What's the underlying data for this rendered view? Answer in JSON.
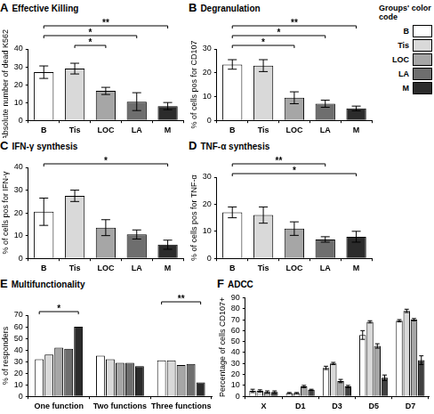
{
  "chart_data": [
    {
      "panel": "A",
      "type": "bar",
      "title": "Effective Killing",
      "ylabel": "Absolute number of dead K562",
      "categories": [
        "B",
        "Tis",
        "LOC",
        "LA",
        "M"
      ],
      "values": [
        27,
        29,
        16.5,
        10.5,
        8
      ],
      "errors": [
        3.5,
        3,
        2,
        5,
        2
      ],
      "colors": [
        "#ffffff",
        "#d9d9d9",
        "#a6a6a6",
        "#6e6e6e",
        "#2b2b2b"
      ],
      "ylim": [
        0,
        40
      ],
      "yticks": [
        0,
        10,
        20,
        30,
        40
      ],
      "grid": false,
      "significance": [
        {
          "from": "Tis",
          "to": "LOC",
          "label": "*"
        },
        {
          "from": "B",
          "to": "LA",
          "label": "*"
        },
        {
          "from": "B",
          "to": "M",
          "label": "**"
        }
      ]
    },
    {
      "panel": "B",
      "type": "bar",
      "title": "Degranulation",
      "ylabel": "% of cells pos for CD107",
      "categories": [
        "B",
        "Tis",
        "LOC",
        "LA",
        "M"
      ],
      "values": [
        23.5,
        23,
        9.5,
        7,
        5
      ],
      "errors": [
        2,
        2.5,
        2.5,
        1.5,
        1
      ],
      "colors": [
        "#ffffff",
        "#d9d9d9",
        "#a6a6a6",
        "#6e6e6e",
        "#2b2b2b"
      ],
      "ylim": [
        0,
        30
      ],
      "yticks": [
        0,
        10,
        20,
        30
      ],
      "grid": false,
      "significance": [
        {
          "from": "B",
          "to": "LOC",
          "label": "*"
        },
        {
          "from": "B",
          "to": "LA",
          "label": "*"
        },
        {
          "from": "B",
          "to": "M",
          "label": "**"
        }
      ]
    },
    {
      "panel": "C",
      "type": "bar",
      "title": "IFN-γ synthesis",
      "ylabel": "% of cells pos for IFN-γ",
      "categories": [
        "B",
        "Tis",
        "LOC",
        "LA",
        "M"
      ],
      "values": [
        20.5,
        27.5,
        13.5,
        10.5,
        6
      ],
      "errors": [
        6,
        2.5,
        3.5,
        2,
        2
      ],
      "colors": [
        "#ffffff",
        "#d9d9d9",
        "#a6a6a6",
        "#6e6e6e",
        "#2b2b2b"
      ],
      "ylim": [
        0,
        40
      ],
      "yticks": [
        0,
        10,
        20,
        30,
        40
      ],
      "grid": false,
      "significance": [
        {
          "from": "B",
          "to": "M",
          "label": "*"
        }
      ]
    },
    {
      "panel": "D",
      "type": "bar",
      "title": "TNF-α synthesis",
      "ylabel": "% of cells pos for TNF-α",
      "categories": [
        "B",
        "Tis",
        "LOC",
        "LA",
        "M"
      ],
      "values": [
        17,
        16,
        11,
        7,
        8
      ],
      "errors": [
        2,
        3,
        2.5,
        1,
        2
      ],
      "colors": [
        "#ffffff",
        "#d9d9d9",
        "#a6a6a6",
        "#6e6e6e",
        "#2b2b2b"
      ],
      "ylim": [
        0,
        30
      ],
      "yticks": [
        0,
        10,
        20,
        30
      ],
      "grid": false,
      "significance": [
        {
          "from": "B",
          "to": "M",
          "label": "*"
        },
        {
          "from": "B",
          "to": "LA",
          "label": "**"
        }
      ]
    },
    {
      "panel": "E",
      "type": "bar",
      "title": "Multifunctionality",
      "ylabel": "% of responders",
      "categories": [
        "One function",
        "Two functions",
        "Three functions"
      ],
      "series": [
        {
          "name": "B",
          "color": "#ffffff",
          "values": [
            32,
            35,
            31
          ]
        },
        {
          "name": "Tis",
          "color": "#d9d9d9",
          "values": [
            36,
            32,
            31
          ]
        },
        {
          "name": "LOC",
          "color": "#a6a6a6",
          "values": [
            42,
            29,
            27
          ]
        },
        {
          "name": "LA",
          "color": "#6e6e6e",
          "values": [
            41,
            29,
            28
          ]
        },
        {
          "name": "M",
          "color": "#2b2b2b",
          "values": [
            60,
            26,
            12
          ]
        }
      ],
      "ylim": [
        0,
        70
      ],
      "yticks": [
        0,
        10,
        20,
        30,
        40,
        50,
        60,
        70
      ],
      "grid": false,
      "significance": [
        {
          "category": "One function",
          "from": "B",
          "to": "M",
          "label": "*"
        },
        {
          "category": "Three functions",
          "from": "B",
          "to": "M",
          "label": "**"
        }
      ]
    },
    {
      "panel": "F",
      "type": "bar",
      "title": "ADCC",
      "ylabel": "Percentage of cells CD107+",
      "categories": [
        "X",
        "D1",
        "D3",
        "D5",
        "D7"
      ],
      "series": [
        {
          "color": "#ffffff",
          "values": [
            5,
            3,
            26,
            56,
            69
          ],
          "errors": [
            1.5,
            0.5,
            1.5,
            4,
            1
          ]
        },
        {
          "color": "#d9d9d9",
          "values": [
            5,
            3,
            30,
            68,
            78
          ],
          "errors": [
            1,
            0.5,
            1,
            1,
            1.5
          ]
        },
        {
          "color": "#a6a6a6",
          "values": [
            4,
            9,
            14,
            46,
            70
          ],
          "errors": [
            1,
            1,
            1.5,
            2,
            1
          ]
        },
        {
          "color": "#404040",
          "values": [
            4,
            6,
            9,
            17,
            33
          ],
          "errors": [
            1,
            0.5,
            1,
            2.5,
            4
          ]
        }
      ],
      "ylim": [
        0,
        90
      ],
      "yticks": [
        0,
        10,
        20,
        30,
        40,
        50,
        60,
        70,
        80,
        90
      ],
      "grid": false
    }
  ],
  "color_code": {
    "title": "Groups' color code",
    "groups": [
      {
        "name": "B",
        "color": "#ffffff"
      },
      {
        "name": "Tis",
        "color": "#d9d9d9"
      },
      {
        "name": "LOC",
        "color": "#a6a6a6"
      },
      {
        "name": "LA",
        "color": "#6e6e6e"
      },
      {
        "name": "M",
        "color": "#2b2b2b"
      }
    ]
  }
}
